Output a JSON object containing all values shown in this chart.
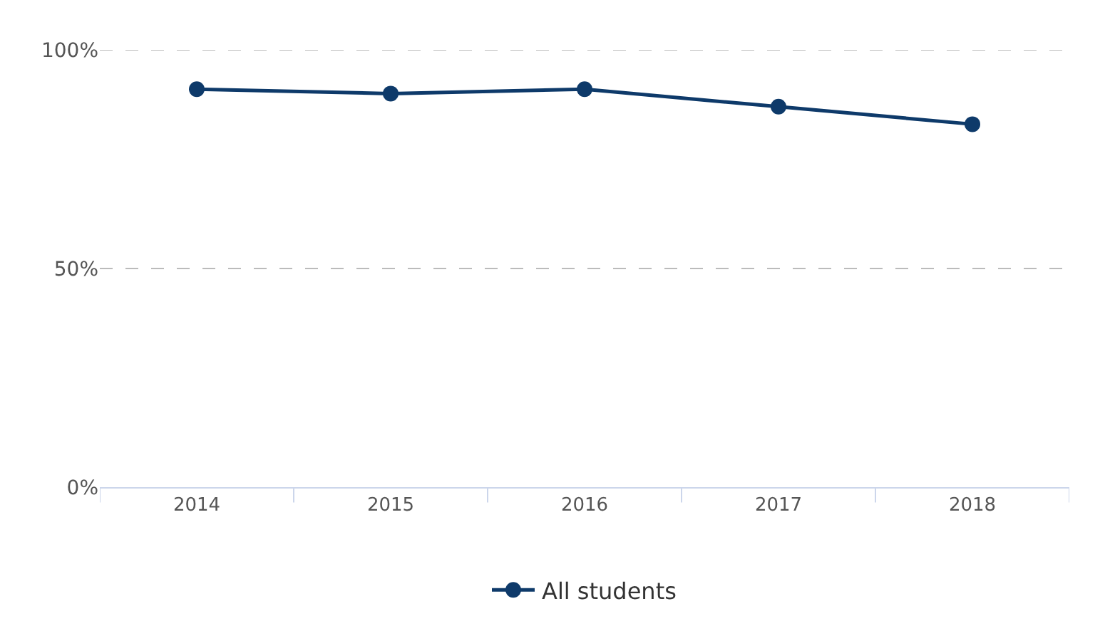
{
  "chart_data": {
    "type": "line",
    "categories": [
      "2014",
      "2015",
      "2016",
      "2017",
      "2018"
    ],
    "series": [
      {
        "name": "All students",
        "color": "#0e3a6a",
        "values": [
          91,
          90,
          91,
          87,
          83
        ]
      }
    ],
    "ylim": [
      0,
      100
    ],
    "yticks": [
      {
        "value": 0,
        "label": "0%"
      },
      {
        "value": 50,
        "label": "50%"
      },
      {
        "value": 100,
        "label": "100%"
      }
    ],
    "grid": "y",
    "legend": "bottom",
    "marker": "circle",
    "line_style": "solid"
  }
}
